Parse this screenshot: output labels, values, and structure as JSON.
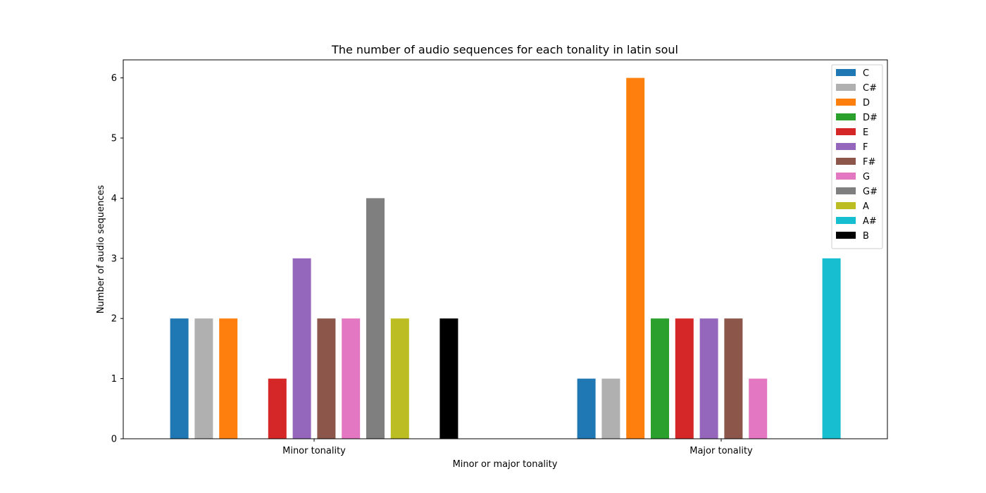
{
  "chart_data": {
    "type": "bar",
    "title": "The number of audio sequences for each tonality in latin soul",
    "xlabel": "Minor or major tonality",
    "ylabel": "Number of audio sequences",
    "categories": [
      "Minor tonality",
      "Major tonality"
    ],
    "ylim": [
      0,
      6.3
    ],
    "yticks": [
      0,
      1,
      2,
      3,
      4,
      5,
      6
    ],
    "grid": false,
    "legend_position": "top-right",
    "series": [
      {
        "name": "C",
        "color": "#1f77b4",
        "values": [
          2,
          1
        ]
      },
      {
        "name": "C#",
        "color": "#b0b0b0",
        "values": [
          2,
          1
        ]
      },
      {
        "name": "D",
        "color": "#ff7f0e",
        "values": [
          2,
          6
        ]
      },
      {
        "name": "D#",
        "color": "#2ca02c",
        "values": [
          0,
          2
        ]
      },
      {
        "name": "E",
        "color": "#d62728",
        "values": [
          1,
          2
        ]
      },
      {
        "name": "F",
        "color": "#9467bd",
        "values": [
          3,
          2
        ]
      },
      {
        "name": "F#",
        "color": "#8c564b",
        "values": [
          2,
          2
        ]
      },
      {
        "name": "G",
        "color": "#e377c2",
        "values": [
          2,
          1
        ]
      },
      {
        "name": "G#",
        "color": "#7f7f7f",
        "values": [
          4,
          0
        ]
      },
      {
        "name": "A",
        "color": "#bcbd22",
        "values": [
          2,
          0
        ]
      },
      {
        "name": "A#",
        "color": "#17becf",
        "values": [
          0,
          3
        ]
      },
      {
        "name": "B",
        "color": "#000000",
        "values": [
          2,
          0
        ]
      }
    ]
  }
}
